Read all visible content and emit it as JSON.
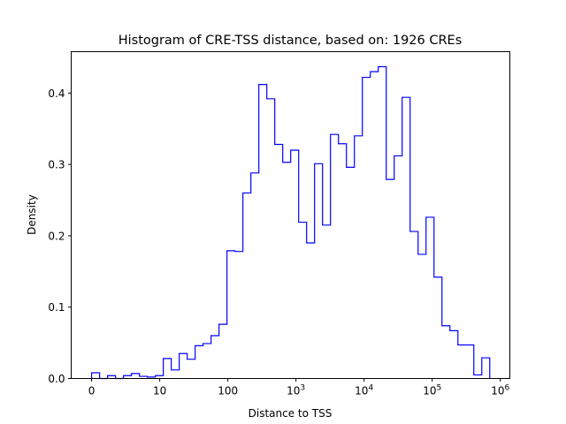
{
  "chart_data": {
    "type": "histogram",
    "title": "Histogram of CRE-TSS distance, based on: 1926 CREs",
    "xlabel": "Distance to TSS",
    "ylabel": "Density",
    "x_scale": "log10(1 + distance)",
    "bin_count": 50,
    "bin_range_log10": [
      0,
      5.845
    ],
    "xlim_log10": [
      -0.3,
      6.14
    ],
    "ylim": [
      0,
      0.458
    ],
    "grid": false,
    "color": "#0000ff",
    "densities": [
      0.008,
      0,
      0.004,
      0,
      0.004,
      0.007,
      0.003,
      0.002,
      0.004,
      0.028,
      0.012,
      0.035,
      0.027,
      0.046,
      0.049,
      0.06,
      0.076,
      0.179,
      0.178,
      0.26,
      0.288,
      0.412,
      0.392,
      0.328,
      0.303,
      0.32,
      0.219,
      0.19,
      0.301,
      0.215,
      0.342,
      0.329,
      0.296,
      0.34,
      0.422,
      0.43,
      0.437,
      0.279,
      0.312,
      0.394,
      0.206,
      0.174,
      0.226,
      0.142,
      0.074,
      0.067,
      0.047,
      0.047,
      0.005,
      0.029
    ],
    "x_ticks": [
      {
        "pos": 0,
        "base": "0",
        "exp": ""
      },
      {
        "pos": 1,
        "base": "10",
        "exp": ""
      },
      {
        "pos": 2,
        "base": "100",
        "exp": ""
      },
      {
        "pos": 3,
        "base": "10",
        "exp": "3"
      },
      {
        "pos": 4,
        "base": "10",
        "exp": "4"
      },
      {
        "pos": 5,
        "base": "10",
        "exp": "5"
      },
      {
        "pos": 6,
        "base": "10",
        "exp": "6"
      }
    ],
    "y_ticks": [
      {
        "value": 0,
        "label": "0.0"
      },
      {
        "value": 0.1,
        "label": "0.1"
      },
      {
        "value": 0.2,
        "label": "0.2"
      },
      {
        "value": 0.3,
        "label": "0.3"
      },
      {
        "value": 0.4,
        "label": "0.4"
      }
    ]
  }
}
